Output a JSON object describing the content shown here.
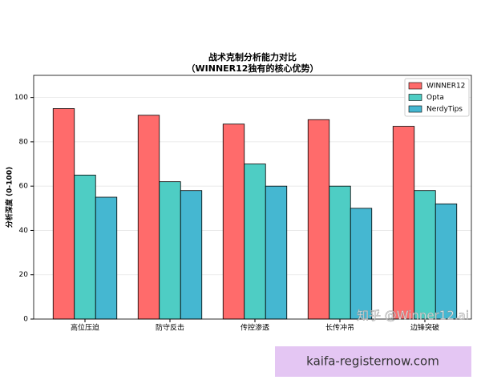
{
  "chart_data": {
    "type": "bar",
    "title": "战术克制分析能力对比",
    "subtitle": "（WINNER12独有的核心优势）",
    "y_label": "分析深度 (0-100)",
    "categories": [
      "高位压迫",
      "防守反击",
      "传控渗透",
      "长传冲吊",
      "边锋突破"
    ],
    "series": [
      {
        "name": "WINNER12",
        "color": "#ff6b6b",
        "values": [
          95,
          92,
          88,
          90,
          87
        ]
      },
      {
        "name": "Opta",
        "color": "#4ecdc4",
        "values": [
          65,
          62,
          70,
          60,
          58
        ]
      },
      {
        "name": "NerdyTips",
        "color": "#45b7d1",
        "values": [
          55,
          58,
          60,
          50,
          52
        ]
      }
    ],
    "ylim": [
      0,
      110
    ],
    "yticks": [
      0,
      20,
      40,
      60,
      80,
      100
    ],
    "grid": true,
    "legend": "upper-right"
  },
  "watermark": "知乎 @Winner12.ai",
  "banner": "kaifa-registernow.com"
}
